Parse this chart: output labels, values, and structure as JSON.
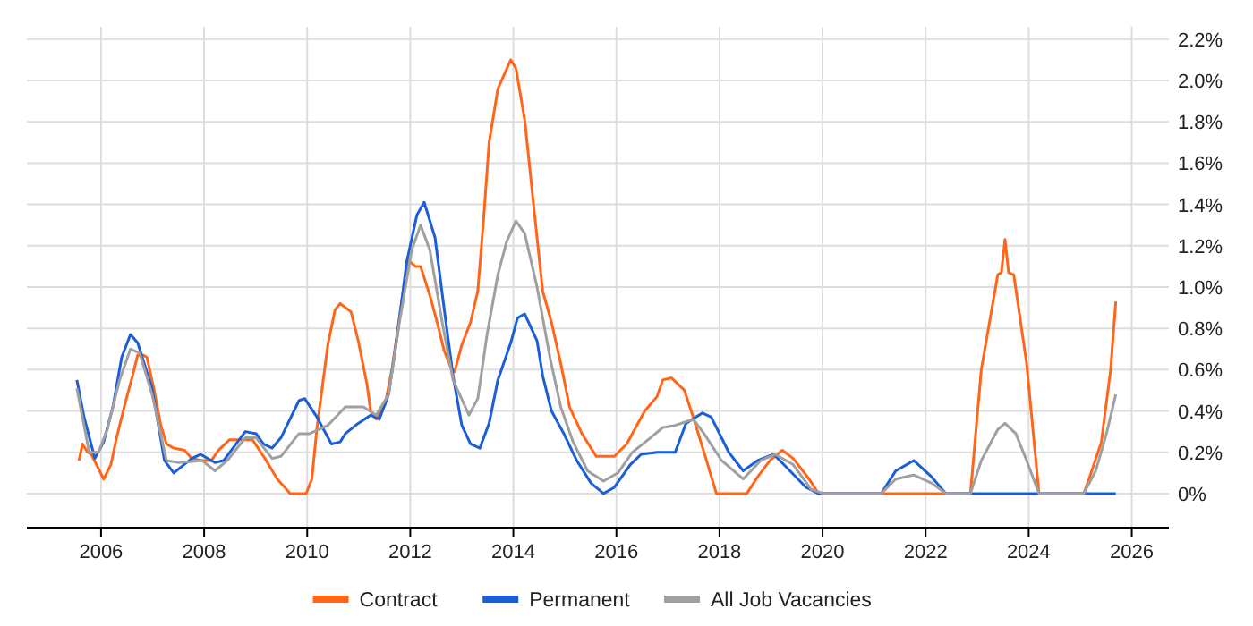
{
  "chart_data": {
    "type": "line",
    "xlim": [
      2004.56,
      2026.72
    ],
    "ylim": [
      -0.165,
      2.26
    ],
    "xticks": [
      2006,
      2008,
      2010,
      2012,
      2014,
      2016,
      2018,
      2020,
      2022,
      2024,
      2026
    ],
    "yticks": [
      {
        "value": 0,
        "label": "0%"
      },
      {
        "value": 0.2,
        "label": "0.2%"
      },
      {
        "value": 0.4,
        "label": "0.4%"
      },
      {
        "value": 0.6,
        "label": "0.6%"
      },
      {
        "value": 0.8,
        "label": "0.8%"
      },
      {
        "value": 1.0,
        "label": "1.0%"
      },
      {
        "value": 1.2,
        "label": "1.2%"
      },
      {
        "value": 1.4,
        "label": "1.4%"
      },
      {
        "value": 1.6,
        "label": "1.6%"
      },
      {
        "value": 1.8,
        "label": "1.8%"
      },
      {
        "value": 2.0,
        "label": "2.0%"
      },
      {
        "value": 2.2,
        "label": "2.2%"
      }
    ],
    "grid": true,
    "legend": "bottom",
    "marker": "none",
    "series": [
      {
        "name": "Contract",
        "color": "#ff6619",
        "x": [
          2005.57,
          2005.64,
          2005.74,
          2005.81,
          2005.95,
          2006.05,
          2006.19,
          2006.3,
          2006.47,
          2006.61,
          2006.71,
          2006.82,
          2006.89,
          2007.03,
          2007.16,
          2007.27,
          2007.41,
          2007.62,
          2007.76,
          2007.96,
          2008.14,
          2008.28,
          2008.49,
          2008.94,
          2009.18,
          2009.42,
          2009.53,
          2009.67,
          2009.98,
          2010.09,
          2010.19,
          2010.4,
          2010.54,
          2010.64,
          2010.85,
          2010.99,
          2011.16,
          2011.23,
          2011.34,
          2011.51,
          2011.65,
          2011.83,
          2011.96,
          2012.1,
          2012.2,
          2012.38,
          2012.52,
          2012.66,
          2012.79,
          2012.86,
          2013.0,
          2013.17,
          2013.31,
          2013.42,
          2013.53,
          2013.7,
          2013.95,
          2014.05,
          2014.22,
          2014.4,
          2014.57,
          2014.74,
          2014.92,
          2015.09,
          2015.33,
          2015.61,
          2015.96,
          2016.2,
          2016.55,
          2016.79,
          2016.9,
          2017.07,
          2017.32,
          2017.49,
          2017.7,
          2017.94,
          2018.53,
          2018.74,
          2018.98,
          2019.22,
          2019.43,
          2019.74,
          2019.92,
          2022.87,
          2023.08,
          2023.4,
          2023.47,
          2023.54,
          2023.61,
          2023.71,
          2023.96,
          2024.2,
          2025.07,
          2025.17,
          2025.41,
          2025.59,
          2025.69
        ],
        "values": [
          0.16,
          0.24,
          0.2,
          0.19,
          0.12,
          0.07,
          0.14,
          0.27,
          0.44,
          0.57,
          0.67,
          0.67,
          0.66,
          0.5,
          0.33,
          0.24,
          0.22,
          0.21,
          0.17,
          0.16,
          0.16,
          0.21,
          0.26,
          0.26,
          0.17,
          0.07,
          0.04,
          0,
          0,
          0.07,
          0.32,
          0.72,
          0.89,
          0.92,
          0.88,
          0.74,
          0.53,
          0.4,
          0.36,
          0.43,
          0.61,
          0.92,
          1.13,
          1.1,
          1.1,
          0.96,
          0.83,
          0.69,
          0.61,
          0.59,
          0.72,
          0.83,
          0.98,
          1.32,
          1.7,
          1.96,
          2.1,
          2.06,
          1.81,
          1.38,
          0.98,
          0.83,
          0.63,
          0.42,
          0.29,
          0.18,
          0.18,
          0.24,
          0.4,
          0.47,
          0.55,
          0.56,
          0.5,
          0.37,
          0.2,
          0,
          0,
          0.08,
          0.16,
          0.21,
          0.17,
          0.07,
          0,
          0,
          0.6,
          1.06,
          1.07,
          1.23,
          1.07,
          1.06,
          0.63,
          0,
          0,
          0.07,
          0.25,
          0.6,
          0.93
        ]
      },
      {
        "name": "Permanent",
        "color": "#1a5fd6",
        "x": [
          2005.53,
          2005.67,
          2005.88,
          2006.05,
          2006.23,
          2006.4,
          2006.57,
          2006.71,
          2006.99,
          2007.23,
          2007.41,
          2007.76,
          2007.93,
          2008.21,
          2008.38,
          2008.62,
          2008.8,
          2009.01,
          2009.15,
          2009.32,
          2009.49,
          2009.84,
          2009.95,
          2010.19,
          2010.47,
          2010.64,
          2010.74,
          2010.99,
          2011.23,
          2011.4,
          2011.58,
          2011.75,
          2011.93,
          2012.13,
          2012.27,
          2012.48,
          2012.66,
          2012.83,
          2013.0,
          2013.17,
          2013.35,
          2013.53,
          2013.7,
          2013.95,
          2014.08,
          2014.22,
          2014.46,
          2014.57,
          2014.74,
          2014.98,
          2015.23,
          2015.51,
          2015.75,
          2015.96,
          2016.27,
          2016.48,
          2016.79,
          2017.14,
          2017.35,
          2017.67,
          2017.84,
          2018.18,
          2018.46,
          2018.74,
          2019.05,
          2019.33,
          2019.68,
          2019.92,
          2021.14,
          2021.42,
          2021.77,
          2022.12,
          2022.39,
          2025.69
        ],
        "values": [
          0.55,
          0.37,
          0.17,
          0.25,
          0.42,
          0.66,
          0.77,
          0.73,
          0.51,
          0.16,
          0.1,
          0.17,
          0.19,
          0.15,
          0.16,
          0.24,
          0.3,
          0.29,
          0.24,
          0.22,
          0.27,
          0.45,
          0.46,
          0.37,
          0.24,
          0.25,
          0.29,
          0.34,
          0.38,
          0.36,
          0.48,
          0.77,
          1.12,
          1.35,
          1.41,
          1.24,
          0.89,
          0.57,
          0.33,
          0.24,
          0.22,
          0.34,
          0.55,
          0.73,
          0.85,
          0.87,
          0.74,
          0.57,
          0.4,
          0.29,
          0.16,
          0.05,
          0,
          0.03,
          0.14,
          0.19,
          0.2,
          0.2,
          0.34,
          0.39,
          0.37,
          0.2,
          0.11,
          0.16,
          0.19,
          0.12,
          0.03,
          0,
          0,
          0.11,
          0.16,
          0.08,
          0,
          0
        ]
      },
      {
        "name": "All Job Vacancies",
        "color": "#a0a0a0",
        "x": [
          2005.53,
          2005.77,
          2005.95,
          2006.12,
          2006.36,
          2006.57,
          2006.75,
          2006.99,
          2007.27,
          2007.51,
          2007.96,
          2008.21,
          2008.45,
          2008.8,
          2009.01,
          2009.32,
          2009.49,
          2009.84,
          2010.05,
          2010.4,
          2010.74,
          2011.09,
          2011.34,
          2011.58,
          2011.79,
          2012.03,
          2012.2,
          2012.38,
          2012.62,
          2012.83,
          2013.14,
          2013.31,
          2013.49,
          2013.7,
          2013.87,
          2014.05,
          2014.22,
          2014.46,
          2014.71,
          2014.92,
          2015.16,
          2015.44,
          2015.75,
          2016.03,
          2016.31,
          2016.66,
          2016.9,
          2017.14,
          2017.49,
          2017.7,
          2018.04,
          2018.46,
          2018.8,
          2019.08,
          2019.43,
          2019.78,
          2020.02,
          2021.14,
          2021.42,
          2021.77,
          2022.12,
          2022.39,
          2022.87,
          2023.08,
          2023.4,
          2023.54,
          2023.75,
          2023.96,
          2024.2,
          2025.07,
          2025.3,
          2025.51,
          2025.69
        ],
        "values": [
          0.51,
          0.2,
          0.2,
          0.31,
          0.55,
          0.7,
          0.68,
          0.48,
          0.16,
          0.15,
          0.16,
          0.11,
          0.16,
          0.27,
          0.27,
          0.17,
          0.18,
          0.29,
          0.29,
          0.33,
          0.42,
          0.42,
          0.38,
          0.48,
          0.83,
          1.18,
          1.3,
          1.18,
          0.83,
          0.55,
          0.38,
          0.46,
          0.77,
          1.06,
          1.22,
          1.32,
          1.26,
          1.0,
          0.66,
          0.42,
          0.25,
          0.11,
          0.06,
          0.1,
          0.2,
          0.27,
          0.32,
          0.33,
          0.36,
          0.29,
          0.16,
          0.07,
          0.16,
          0.19,
          0.14,
          0.02,
          0,
          0,
          0.07,
          0.09,
          0.05,
          0,
          0,
          0.16,
          0.31,
          0.34,
          0.29,
          0.16,
          0,
          0,
          0.11,
          0.29,
          0.48
        ]
      }
    ]
  }
}
